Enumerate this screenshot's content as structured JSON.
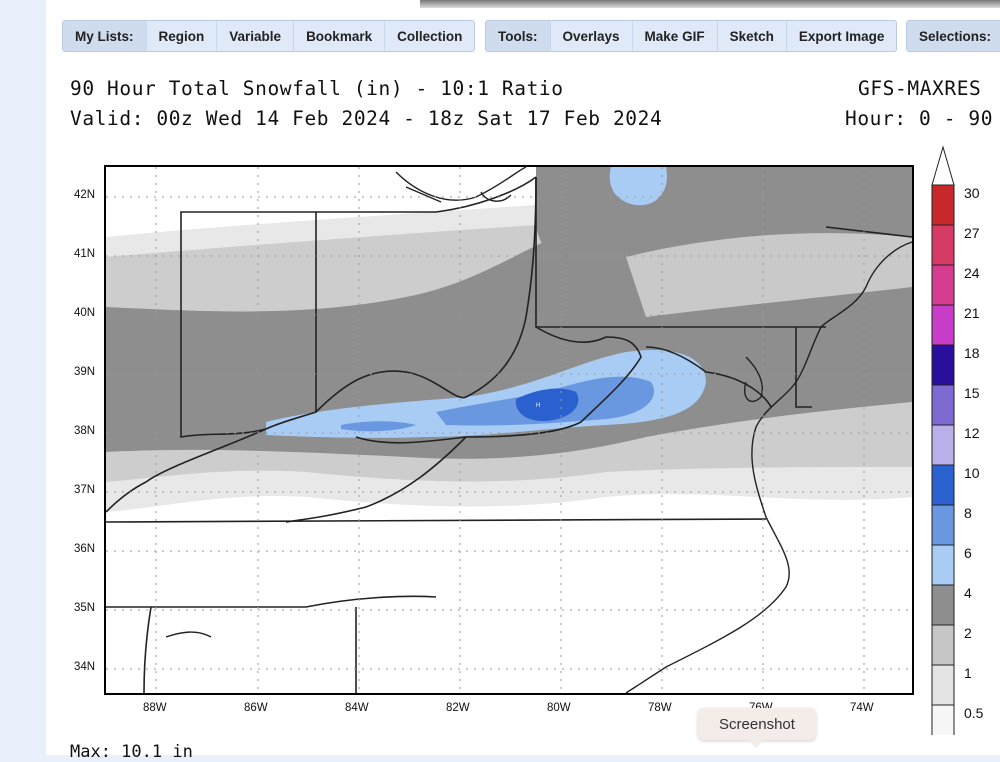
{
  "toolbar_lists": {
    "label": "My Lists:",
    "items": [
      "Region",
      "Variable",
      "Bookmark",
      "Collection"
    ]
  },
  "toolbar_tools": {
    "label": "Tools:",
    "items": [
      "Overlays",
      "Make GIF",
      "Sketch",
      "Export Image"
    ]
  },
  "toolbar_selections": {
    "label": "Selections:"
  },
  "title": {
    "line1": "90 Hour Total Snowfall (in) - 10:1 Ratio",
    "line2": "Valid: 00z Wed 14 Feb 2024 - 18z Sat 17 Feb 2024",
    "model": "GFS-MAXRES",
    "hour": "Hour: 0 - 90"
  },
  "axes": {
    "lat_labels": [
      "42N",
      "41N",
      "40N",
      "39N",
      "38N",
      "37N",
      "36N",
      "35N",
      "34N"
    ],
    "lon_labels": [
      "88W",
      "86W",
      "84W",
      "82W",
      "80W",
      "78W",
      "76W",
      "74W"
    ]
  },
  "colorbar": {
    "levels": [
      "30",
      "27",
      "24",
      "21",
      "18",
      "15",
      "12",
      "10",
      "8",
      "6",
      "4",
      "2",
      "1",
      "0.5"
    ],
    "colors": [
      "#c8282b",
      "#d63b66",
      "#d43c90",
      "#c83ec8",
      "#2a0e9c",
      "#7f6ad2",
      "#bbb0ea",
      "#2b61cf",
      "#6a98e0",
      "#a9ccf5",
      "#8e8e8e",
      "#c6c6c6",
      "#e4e4e4",
      "#f7f7f7"
    ]
  },
  "tooltip": "Screenshot",
  "max_text": "Max: 10.1 in"
}
